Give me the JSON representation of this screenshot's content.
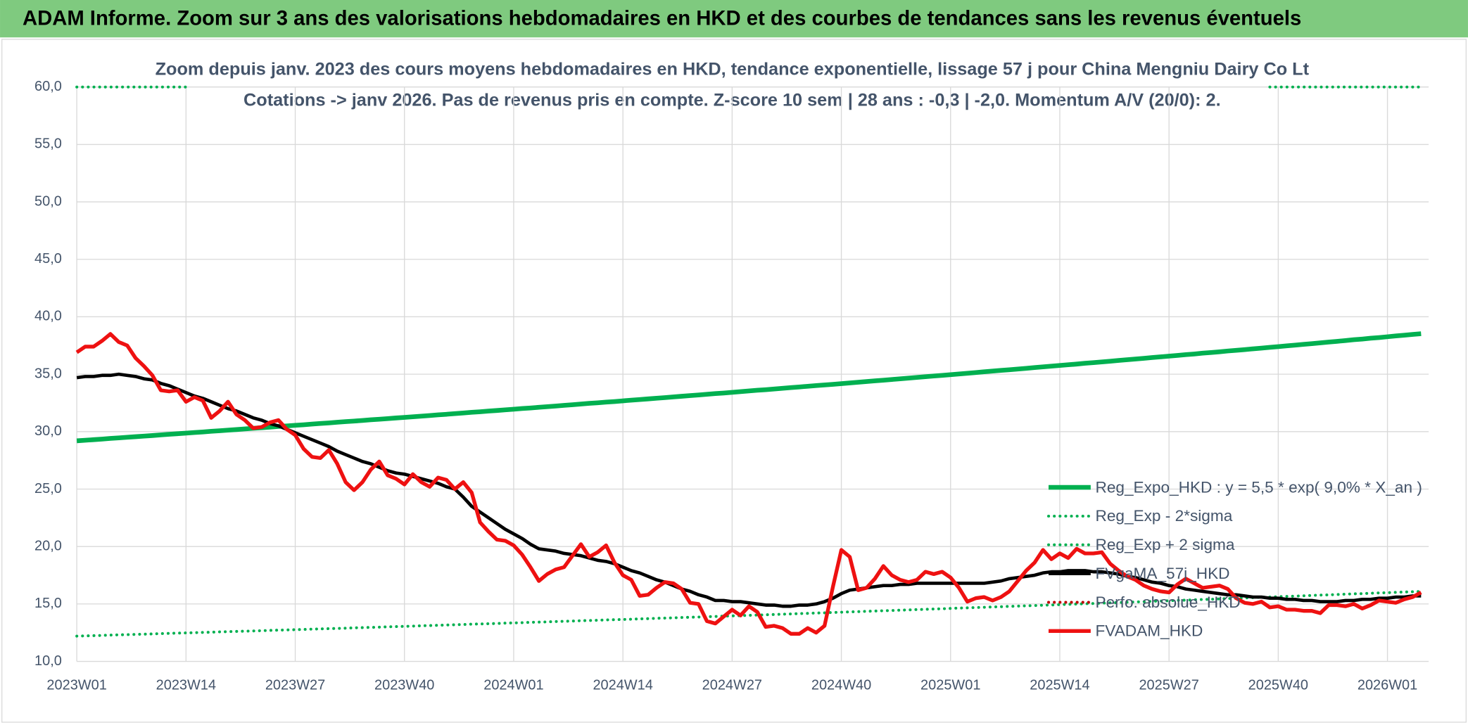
{
  "header": {
    "title": "ADAM Informe. Zoom sur 3 ans des valorisations hebdomadaires en HKD et des courbes de tendances sans les revenus éventuels"
  },
  "chart_data": {
    "type": "line",
    "subtitle": [
      "Zoom depuis janv. 2023 des cours moyens hebdomadaires en HKD, tendance exponentielle, lissage 57 j pour China Mengniu Dairy Co Lt",
      "Cotations -> janv 2026. Pas de revenus pris en compte. Z-score 10 sem | 28 ans : -0,3 | -2,0. Momentum A/V (20/0): 2."
    ],
    "categories": [
      "2023W01",
      null,
      null,
      null,
      null,
      null,
      null,
      null,
      null,
      null,
      null,
      null,
      null,
      "2023W14",
      null,
      null,
      null,
      null,
      null,
      null,
      null,
      null,
      null,
      null,
      null,
      null,
      "2023W27",
      null,
      null,
      null,
      null,
      null,
      null,
      null,
      null,
      null,
      null,
      null,
      null,
      "2023W40",
      null,
      null,
      null,
      null,
      null,
      null,
      null,
      null,
      null,
      null,
      null,
      null,
      "2024W01",
      null,
      null,
      null,
      null,
      null,
      null,
      null,
      null,
      null,
      null,
      null,
      null,
      "2024W14",
      null,
      null,
      null,
      null,
      null,
      null,
      null,
      null,
      null,
      null,
      null,
      null,
      "2024W27",
      null,
      null,
      null,
      null,
      null,
      null,
      null,
      null,
      null,
      null,
      null,
      null,
      "2024W40",
      null,
      null,
      null,
      null,
      null,
      null,
      null,
      null,
      null,
      null,
      null,
      null,
      "2025W01",
      null,
      null,
      null,
      null,
      null,
      null,
      null,
      null,
      null,
      null,
      null,
      null,
      "2025W14",
      null,
      null,
      null,
      null,
      null,
      null,
      null,
      null,
      null,
      null,
      null,
      null,
      "2025W27",
      null,
      null,
      null,
      null,
      null,
      null,
      null,
      null,
      null,
      null,
      null,
      null,
      "2025W40",
      null,
      null,
      null,
      null,
      null,
      null,
      null,
      null,
      null,
      null,
      null,
      null,
      "2026W01",
      null,
      null,
      null,
      null
    ],
    "ylim": [
      10,
      60
    ],
    "yticks": [
      {
        "value": 10,
        "label": "10,0"
      },
      {
        "value": 15,
        "label": "15,0"
      },
      {
        "value": 20,
        "label": "20,0"
      },
      {
        "value": 25,
        "label": "25,0"
      },
      {
        "value": 30,
        "label": "30,0"
      },
      {
        "value": 35,
        "label": "35,0"
      },
      {
        "value": 40,
        "label": "40,0"
      },
      {
        "value": 45,
        "label": "45,0"
      },
      {
        "value": 50,
        "label": "50,0"
      },
      {
        "value": 55,
        "label": "55,0"
      },
      {
        "value": 60,
        "label": "60,0"
      }
    ],
    "grid": true,
    "legend": "right",
    "series": [
      {
        "name": "Reg_Expo_HKD : y = 5,5 * exp( 9,0% *  X_an )",
        "color": "#00b050",
        "dash": false,
        "width": 5,
        "values": [
          29.2,
          29.25,
          29.3,
          29.35,
          29.41,
          29.46,
          29.51,
          29.56,
          29.61,
          29.66,
          29.72,
          29.77,
          29.82,
          29.87,
          29.92,
          29.97,
          30.03,
          30.08,
          30.13,
          30.18,
          30.24,
          30.29,
          30.34,
          30.39,
          30.45,
          30.5,
          30.55,
          30.6,
          30.66,
          30.71,
          30.76,
          30.82,
          30.87,
          30.92,
          30.97,
          31.03,
          31.08,
          31.13,
          31.19,
          31.24,
          31.29,
          31.35,
          31.4,
          31.46,
          31.51,
          31.57,
          31.62,
          31.68,
          31.73,
          31.79,
          31.84,
          31.9,
          31.95,
          32.01,
          32.06,
          32.12,
          32.17,
          32.23,
          32.29,
          32.34,
          32.4,
          32.46,
          32.51,
          32.57,
          32.62,
          32.68,
          32.74,
          32.79,
          32.85,
          32.91,
          32.96,
          33.02,
          33.08,
          33.14,
          33.19,
          33.25,
          33.31,
          33.36,
          33.42,
          33.48,
          33.54,
          33.6,
          33.65,
          33.71,
          33.77,
          33.83,
          33.89,
          33.95,
          34.01,
          34.06,
          34.12,
          34.18,
          34.24,
          34.3,
          34.36,
          34.42,
          34.48,
          34.54,
          34.6,
          34.66,
          34.72,
          34.78,
          34.84,
          34.9,
          34.96,
          35.02,
          35.08,
          35.14,
          35.21,
          35.27,
          35.33,
          35.39,
          35.45,
          35.51,
          35.58,
          35.64,
          35.7,
          35.76,
          35.82,
          35.88,
          35.95,
          36.01,
          36.07,
          36.13,
          36.2,
          36.26,
          36.32,
          36.38,
          36.45,
          36.51,
          36.57,
          36.63,
          36.7,
          36.76,
          36.83,
          36.89,
          36.95,
          37.02,
          37.08,
          37.14,
          37.21,
          37.27,
          37.34,
          37.4,
          37.47,
          37.53,
          37.6,
          37.66,
          37.73,
          37.8,
          37.86,
          37.93,
          38.0,
          38.06,
          38.13,
          38.19,
          38.26,
          38.33,
          38.39,
          38.46,
          38.52
        ]
      },
      {
        "name": "Reg_Exp - 2*sigma",
        "color": "#00b050",
        "dash": true,
        "width": 3,
        "values": [
          12.2,
          12.22,
          12.24,
          12.26,
          12.29,
          12.31,
          12.33,
          12.35,
          12.37,
          12.39,
          12.42,
          12.44,
          12.46,
          12.48,
          12.5,
          12.52,
          12.54,
          12.57,
          12.59,
          12.61,
          12.63,
          12.65,
          12.67,
          12.7,
          12.72,
          12.74,
          12.76,
          12.78,
          12.81,
          12.83,
          12.85,
          12.87,
          12.89,
          12.92,
          12.94,
          12.96,
          12.98,
          13.01,
          13.03,
          13.05,
          13.07,
          13.1,
          13.12,
          13.14,
          13.17,
          13.19,
          13.21,
          13.24,
          13.26,
          13.28,
          13.3,
          13.33,
          13.35,
          13.37,
          13.4,
          13.42,
          13.44,
          13.47,
          13.49,
          13.51,
          13.54,
          13.56,
          13.58,
          13.61,
          13.63,
          13.65,
          13.67,
          13.7,
          13.72,
          13.75,
          13.77,
          13.79,
          13.82,
          13.84,
          13.86,
          13.89,
          13.91,
          13.94,
          13.96,
          13.98,
          14.01,
          14.03,
          14.06,
          14.08,
          14.11,
          14.13,
          14.16,
          14.18,
          14.21,
          14.23,
          14.26,
          14.28,
          14.31,
          14.33,
          14.36,
          14.38,
          14.41,
          14.43,
          14.46,
          14.48,
          14.51,
          14.53,
          14.56,
          14.58,
          14.61,
          14.64,
          14.66,
          14.69,
          14.71,
          14.74,
          14.76,
          14.79,
          14.81,
          14.84,
          14.86,
          14.89,
          14.91,
          14.94,
          14.97,
          14.99,
          15.02,
          15.04,
          15.07,
          15.1,
          15.12,
          15.15,
          15.17,
          15.2,
          15.23,
          15.25,
          15.28,
          15.31,
          15.33,
          15.36,
          15.39,
          15.41,
          15.44,
          15.47,
          15.5,
          15.52,
          15.55,
          15.58,
          15.6,
          15.63,
          15.66,
          15.68,
          15.71,
          15.74,
          15.77,
          15.79,
          15.82,
          15.85,
          15.88,
          15.9,
          15.93,
          15.96,
          15.98,
          16.01,
          16.04,
          16.06,
          16.09
        ]
      },
      {
        "name": "Reg_Exp + 2 sigma",
        "color": "#00b050",
        "dash": true,
        "width": 3,
        "values": [
          60,
          60,
          60,
          60,
          60,
          60,
          60,
          60,
          60,
          60,
          60,
          60,
          60,
          60,
          null,
          null,
          null,
          null,
          null,
          null,
          null,
          null,
          null,
          null,
          null,
          null,
          null,
          null,
          null,
          null,
          null,
          null,
          null,
          null,
          null,
          null,
          null,
          null,
          null,
          null,
          null,
          null,
          null,
          null,
          null,
          null,
          null,
          null,
          null,
          null,
          null,
          null,
          null,
          null,
          null,
          null,
          null,
          null,
          null,
          null,
          null,
          null,
          null,
          null,
          null,
          null,
          null,
          null,
          null,
          null,
          null,
          null,
          null,
          null,
          null,
          null,
          null,
          null,
          null,
          null,
          null,
          null,
          null,
          null,
          null,
          null,
          null,
          null,
          null,
          null,
          null,
          null,
          null,
          null,
          null,
          null,
          null,
          null,
          null,
          null,
          null,
          null,
          null,
          null,
          null,
          null,
          null,
          null,
          null,
          null,
          null,
          null,
          null,
          null,
          null,
          null,
          null,
          null,
          null,
          null,
          null,
          null,
          null,
          null,
          null,
          null,
          null,
          null,
          null,
          null,
          null,
          null,
          null,
          null,
          null,
          null,
          null,
          null,
          null,
          null,
          null,
          null,
          60,
          60,
          60,
          60,
          60,
          60,
          60,
          60,
          60,
          60,
          60,
          60,
          60,
          60,
          60,
          60,
          60,
          60,
          60
        ]
      },
      {
        "name": "FVgaMA_57j_HKD",
        "color": "#000000",
        "dash": false,
        "width": 3.5,
        "values": [
          34.7,
          34.8,
          34.8,
          34.9,
          34.9,
          35.0,
          34.9,
          34.8,
          34.6,
          34.5,
          34.2,
          34.0,
          33.7,
          33.4,
          33.1,
          32.9,
          32.6,
          32.3,
          32.0,
          31.8,
          31.5,
          31.2,
          31.0,
          30.7,
          30.5,
          30.2,
          29.9,
          29.6,
          29.3,
          29.0,
          28.7,
          28.3,
          28.0,
          27.7,
          27.4,
          27.2,
          26.9,
          26.6,
          26.4,
          26.3,
          26.1,
          25.9,
          25.7,
          25.5,
          25.2,
          25.0,
          24.3,
          23.5,
          23.0,
          22.5,
          22.0,
          21.5,
          21.1,
          20.7,
          20.2,
          19.8,
          19.7,
          19.6,
          19.4,
          19.3,
          19.2,
          19.0,
          18.8,
          18.7,
          18.5,
          18.2,
          17.9,
          17.7,
          17.4,
          17.1,
          16.9,
          16.6,
          16.3,
          16.1,
          15.8,
          15.6,
          15.3,
          15.3,
          15.2,
          15.2,
          15.1,
          15.0,
          14.9,
          14.9,
          14.8,
          14.8,
          14.9,
          14.9,
          15.0,
          15.2,
          15.5,
          15.9,
          16.2,
          16.3,
          16.4,
          16.5,
          16.6,
          16.6,
          16.7,
          16.7,
          16.8,
          16.8,
          16.8,
          16.8,
          16.8,
          16.8,
          16.8,
          16.8,
          16.8,
          16.9,
          17.0,
          17.2,
          17.3,
          17.4,
          17.5,
          17.7,
          17.8,
          17.8,
          17.9,
          17.9,
          17.9,
          17.8,
          17.8,
          17.7,
          17.6,
          17.4,
          17.3,
          17.1,
          16.9,
          16.8,
          16.6,
          16.5,
          16.3,
          16.2,
          16.1,
          16.0,
          15.9,
          15.8,
          15.8,
          15.7,
          15.6,
          15.6,
          15.5,
          15.5,
          15.4,
          15.4,
          15.3,
          15.3,
          15.2,
          15.2,
          15.2,
          15.3,
          15.3,
          15.4,
          15.4,
          15.5,
          15.5,
          15.6,
          15.6,
          15.7,
          15.7
        ]
      },
      {
        "name": "Perfo. absolue_HKD",
        "color": "#c00000",
        "dash": true,
        "width": 3,
        "values": [
          null,
          null,
          null,
          null,
          null,
          null,
          null,
          null,
          null,
          null,
          null,
          null,
          null,
          null,
          null,
          null,
          null,
          null,
          null,
          null,
          null,
          null,
          null,
          null,
          null,
          null,
          null,
          null,
          null,
          null,
          null,
          null,
          null,
          null,
          null,
          null,
          null,
          null,
          null,
          null,
          null,
          null,
          null,
          null,
          null,
          null,
          null,
          null,
          null,
          null,
          null,
          null,
          null,
          null,
          null,
          null,
          null,
          null,
          null,
          null,
          null,
          null,
          null,
          null,
          null,
          null,
          null,
          null,
          null,
          null,
          null,
          null,
          null,
          null,
          null,
          null,
          null,
          null,
          null,
          null,
          null,
          null,
          null,
          null,
          null,
          null,
          null,
          null,
          null,
          null,
          null,
          null,
          null,
          null,
          null,
          null,
          null,
          null,
          null,
          null,
          null,
          null,
          null,
          null,
          null,
          null,
          null,
          null,
          null,
          null,
          null,
          null,
          null,
          null,
          null,
          null,
          null,
          null,
          null,
          null,
          null,
          null,
          null,
          null,
          null,
          null,
          null,
          null,
          null,
          null,
          null,
          null,
          null,
          null,
          null,
          null,
          null,
          null,
          null,
          null,
          null,
          null,
          null,
          null,
          null,
          null,
          null,
          null,
          null,
          null,
          null,
          null,
          null,
          null,
          null,
          null,
          null,
          null,
          null,
          null,
          null
        ]
      },
      {
        "name": "FVADAM_HKD",
        "color": "#ee1111",
        "dash": false,
        "width": 4,
        "values": [
          36.9,
          37.4,
          37.4,
          37.9,
          38.5,
          37.8,
          37.5,
          36.4,
          35.7,
          34.9,
          33.6,
          33.5,
          33.6,
          32.6,
          33.0,
          32.7,
          31.2,
          31.8,
          32.6,
          31.5,
          31.0,
          30.3,
          30.4,
          30.8,
          31.0,
          30.2,
          29.7,
          28.5,
          27.8,
          27.7,
          28.4,
          27.2,
          25.6,
          24.9,
          25.6,
          26.7,
          27.4,
          26.2,
          25.9,
          25.4,
          26.3,
          25.6,
          25.2,
          26.0,
          25.8,
          25.0,
          25.6,
          24.7,
          22.1,
          21.3,
          20.6,
          20.5,
          20.1,
          19.3,
          18.2,
          17.0,
          17.6,
          18.0,
          18.2,
          19.2,
          20.2,
          19.1,
          19.5,
          20.1,
          18.6,
          17.5,
          17.1,
          15.7,
          15.8,
          16.4,
          16.9,
          16.8,
          16.3,
          15.1,
          15.0,
          13.5,
          13.3,
          13.9,
          14.5,
          14.0,
          14.8,
          14.3,
          13.0,
          13.1,
          12.9,
          12.4,
          12.4,
          12.9,
          12.5,
          13.1,
          16.5,
          19.7,
          19.1,
          16.2,
          16.4,
          17.2,
          18.3,
          17.5,
          17.1,
          16.9,
          17.1,
          17.8,
          17.6,
          17.8,
          17.3,
          16.4,
          15.2,
          15.5,
          15.6,
          15.3,
          15.6,
          16.1,
          17.0,
          17.9,
          18.6,
          19.7,
          18.9,
          19.4,
          19.0,
          19.8,
          19.4,
          19.4,
          19.5,
          18.5,
          17.9,
          17.4,
          17.1,
          16.6,
          16.3,
          16.1,
          16.0,
          16.7,
          17.2,
          16.8,
          16.4,
          16.5,
          16.6,
          16.3,
          15.5,
          15.1,
          15.0,
          15.2,
          14.7,
          14.8,
          14.5,
          14.5,
          14.4,
          14.4,
          14.2,
          14.9,
          14.9,
          14.8,
          15.0,
          14.6,
          14.9,
          15.3,
          15.2,
          15.1,
          15.4,
          15.6,
          16.0
        ]
      }
    ]
  }
}
